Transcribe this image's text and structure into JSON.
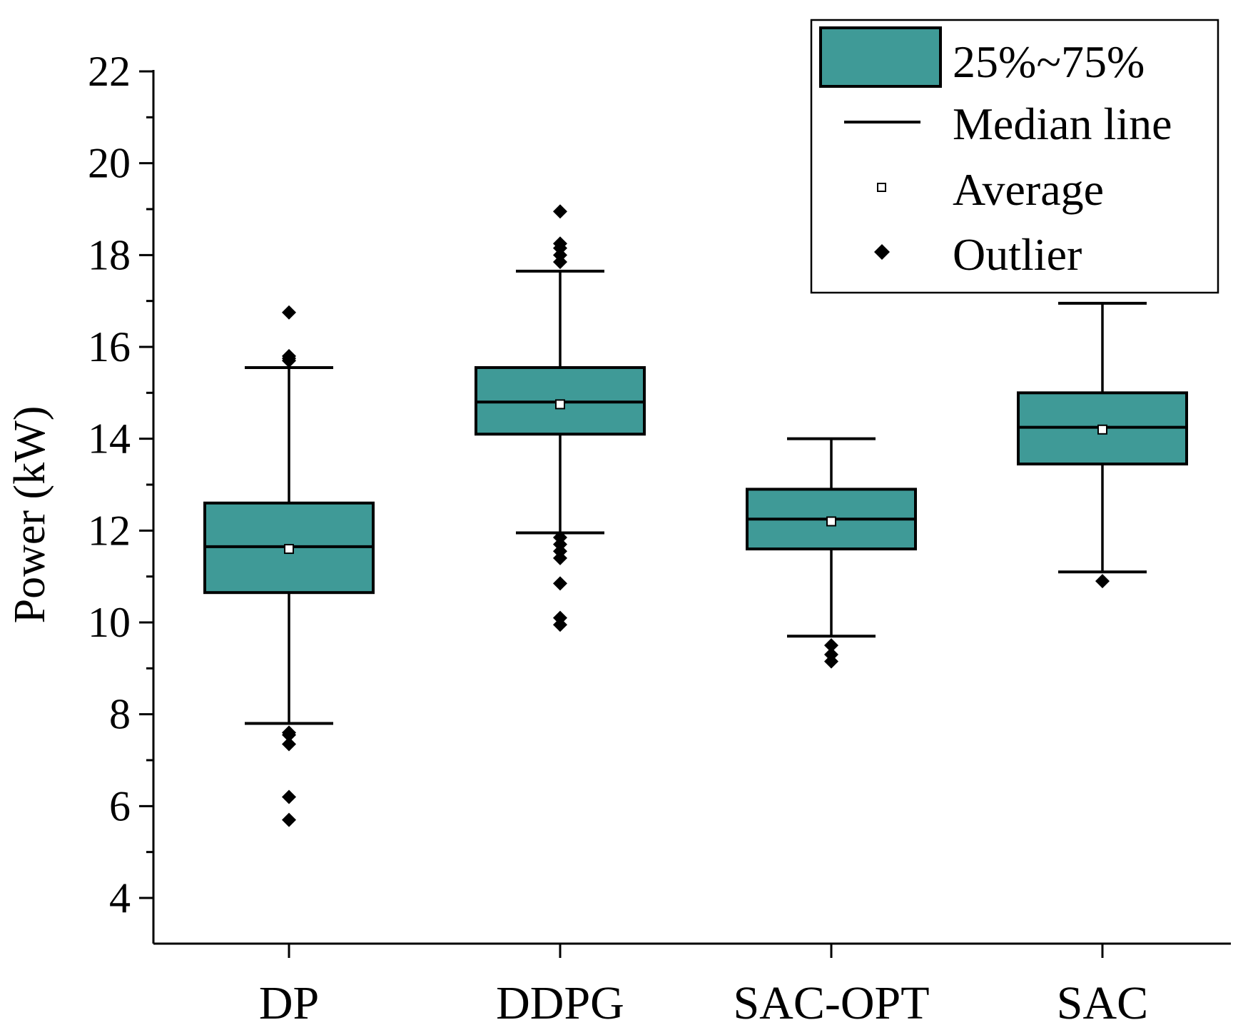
{
  "colors": {
    "box_fill": "#3f9a97",
    "stroke": "#000000",
    "background": "#ffffff"
  },
  "chart_data": {
    "type": "box",
    "ylabel": "Power (kW)",
    "xlabel": "",
    "ylim": [
      3,
      22
    ],
    "yticks": [
      4,
      6,
      8,
      10,
      12,
      14,
      16,
      18,
      20,
      22
    ],
    "ytick_labels": [
      "4",
      "6",
      "8",
      "10",
      "12",
      "14",
      "16",
      "18",
      "20",
      "22"
    ],
    "y_minor_step": 1,
    "categories": [
      "DP",
      "DDPG",
      "SAC-OPT",
      "SAC"
    ],
    "boxes": [
      {
        "category": "DP",
        "whisker_low": 7.8,
        "q1": 10.65,
        "median": 11.65,
        "q3": 12.6,
        "whisker_high": 15.55,
        "mean": 11.6,
        "outliers": [
          15.7,
          15.75,
          15.8,
          16.75,
          7.6,
          7.55,
          7.35,
          6.2,
          5.7
        ]
      },
      {
        "category": "DDPG",
        "whisker_low": 11.95,
        "q1": 14.1,
        "median": 14.8,
        "q3": 15.55,
        "whisker_high": 17.65,
        "mean": 14.75,
        "outliers": [
          17.85,
          18.0,
          18.15,
          18.25,
          18.95,
          11.85,
          11.7,
          11.55,
          11.4,
          10.85,
          10.1,
          9.95
        ]
      },
      {
        "category": "SAC-OPT",
        "whisker_low": 9.7,
        "q1": 11.6,
        "median": 12.25,
        "q3": 12.9,
        "whisker_high": 14.0,
        "mean": 12.2,
        "outliers": [
          9.5,
          9.3,
          9.15
        ]
      },
      {
        "category": "SAC",
        "whisker_low": 11.1,
        "q1": 13.45,
        "median": 14.25,
        "q3": 15.0,
        "whisker_high": 16.95,
        "mean": 14.2,
        "outliers": [
          10.9
        ]
      }
    ],
    "legend": {
      "placement": "top-right",
      "items": [
        {
          "key": "box",
          "label": "25%~75%"
        },
        {
          "key": "median",
          "label": "Median line"
        },
        {
          "key": "mean",
          "label": "Average"
        },
        {
          "key": "outlier",
          "label": "Outlier"
        }
      ]
    }
  }
}
